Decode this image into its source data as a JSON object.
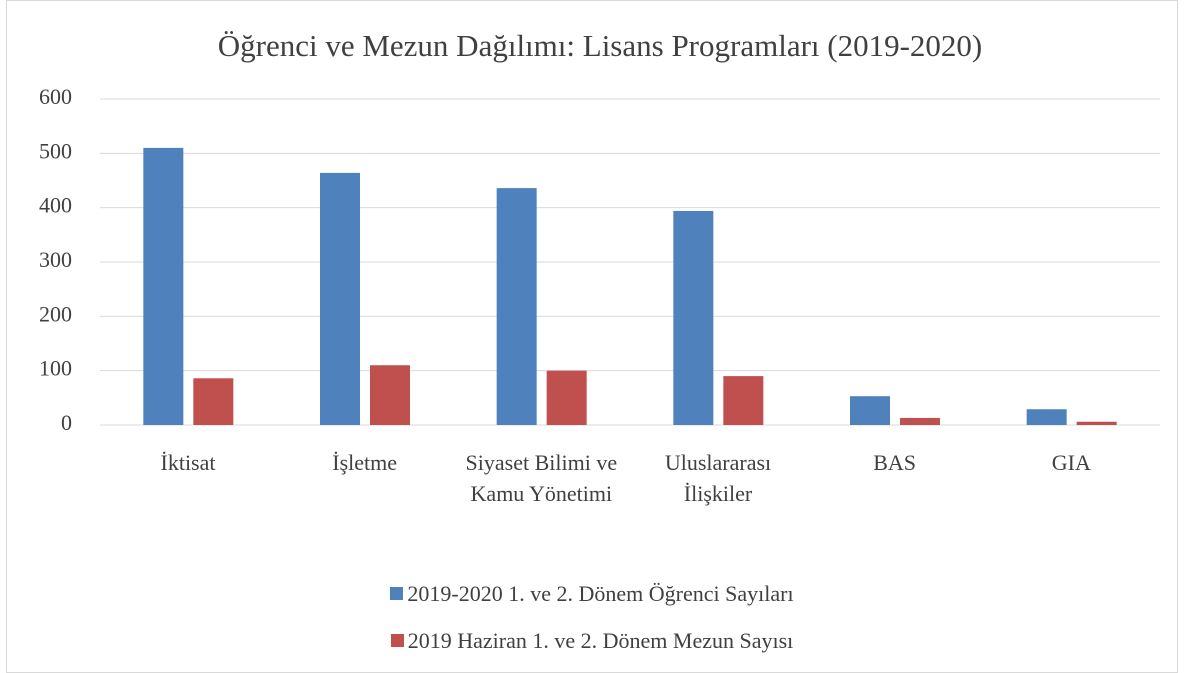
{
  "chart_data": {
    "type": "bar",
    "title": "Öğrenci ve Mezun Dağılımı: Lisans Programları (2019-2020)",
    "categories": [
      "İktisat",
      "İşletme",
      "Siyaset Bilimi ve Kamu Yönetimi",
      "Uluslararası İlişkiler",
      "BAS",
      "GIA"
    ],
    "series": [
      {
        "name": "2019-2020 1. ve 2. Dönem Öğrenci Sayıları",
        "color": "#4f81bd",
        "values": [
          510,
          464,
          436,
          394,
          53,
          29
        ]
      },
      {
        "name": "2019 Haziran 1. ve 2. Dönem Mezun Sayısı",
        "color": "#c0504d",
        "values": [
          86,
          110,
          100,
          90,
          13,
          6
        ]
      }
    ],
    "ylim": [
      0,
      600
    ],
    "yticks": [
      0,
      100,
      200,
      300,
      400,
      500,
      600
    ],
    "grid": true,
    "legend": "bottom"
  }
}
